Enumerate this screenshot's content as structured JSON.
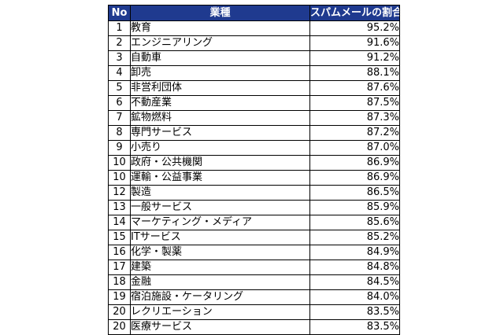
{
  "table": {
    "header": {
      "rank": "No",
      "industry": "業種",
      "spam_rate": "スパムメールの割合"
    },
    "rows": [
      {
        "rank": "1",
        "industry": "教育",
        "spam_rate": "95.2%"
      },
      {
        "rank": "2",
        "industry": "エンジニアリング",
        "spam_rate": "91.6%"
      },
      {
        "rank": "3",
        "industry": "自動車",
        "spam_rate": "91.2%"
      },
      {
        "rank": "4",
        "industry": "卸売",
        "spam_rate": "88.1%"
      },
      {
        "rank": "5",
        "industry": "非営利団体",
        "spam_rate": "87.6%"
      },
      {
        "rank": "6",
        "industry": "不動産業",
        "spam_rate": "87.5%"
      },
      {
        "rank": "7",
        "industry": "鉱物燃料",
        "spam_rate": "87.3%"
      },
      {
        "rank": "8",
        "industry": "専門サービス",
        "spam_rate": "87.2%"
      },
      {
        "rank": "9",
        "industry": "小売り",
        "spam_rate": "87.0%"
      },
      {
        "rank": "10",
        "industry": "政府・公共機関",
        "spam_rate": "86.9%"
      },
      {
        "rank": "10",
        "industry": "運輸・公益事業",
        "spam_rate": "86.9%"
      },
      {
        "rank": "12",
        "industry": "製造",
        "spam_rate": "86.5%"
      },
      {
        "rank": "13",
        "industry": "一般サービス",
        "spam_rate": "85.9%"
      },
      {
        "rank": "14",
        "industry": "マーケティング・メディア",
        "spam_rate": "85.6%"
      },
      {
        "rank": "15",
        "industry": "ITサービス",
        "spam_rate": "85.2%"
      },
      {
        "rank": "16",
        "industry": "化学・製薬",
        "spam_rate": "84.9%"
      },
      {
        "rank": "17",
        "industry": "建築",
        "spam_rate": "84.8%"
      },
      {
        "rank": "18",
        "industry": "金融",
        "spam_rate": "84.5%"
      },
      {
        "rank": "19",
        "industry": "宿泊施設・ケータリング",
        "spam_rate": "84.0%"
      },
      {
        "rank": "20",
        "industry": "レクリエーション",
        "spam_rate": "83.5%"
      },
      {
        "rank": "20",
        "industry": "医療サービス",
        "spam_rate": "83.5%"
      }
    ]
  },
  "colors": {
    "header_background": "#1f3a8f",
    "header_text": "#ffffff",
    "border": "#000000"
  }
}
